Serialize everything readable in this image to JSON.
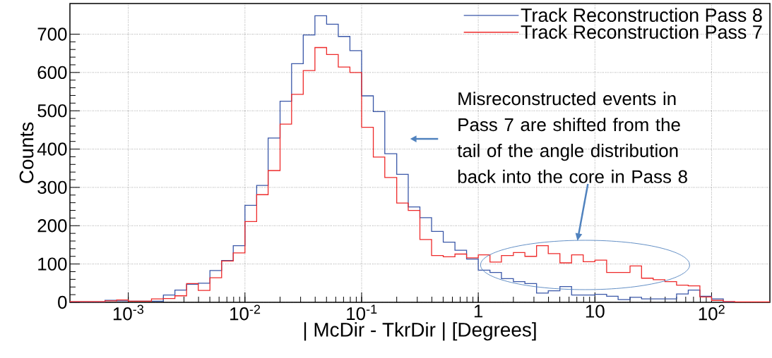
{
  "chart_data": {
    "type": "histogram",
    "xlabel": "| McDir - TkrDir | [Degrees]",
    "ylabel": "Counts",
    "log": "x",
    "bins": [
      0.000316,
      0.000398,
      0.000501,
      0.000631,
      0.000794,
      0.001,
      0.00126,
      0.00158,
      0.002,
      0.00251,
      0.00316,
      0.00398,
      0.00501,
      0.00631,
      0.00794,
      0.01,
      0.0126,
      0.0158,
      0.02,
      0.0251,
      0.0316,
      0.0398,
      0.0501,
      0.0631,
      0.0794,
      0.1,
      0.126,
      0.158,
      0.2,
      0.251,
      0.316,
      0.398,
      0.501,
      0.631,
      0.794,
      1,
      1.26,
      1.58,
      2,
      2.51,
      3.16,
      3.98,
      5.01,
      6.31,
      7.94,
      10,
      12.6,
      15.8,
      20,
      25.1,
      31.6,
      39.8,
      50.1,
      63.1,
      79.4,
      100,
      126,
      158,
      200,
      251,
      316
    ],
    "series": [
      {
        "name": "Track Reconstruction Pass 8",
        "color": "#3a57a8",
        "values": [
          0,
          0,
          0,
          5,
          4,
          3,
          3,
          3,
          19,
          32,
          47,
          50,
          83,
          109,
          148,
          253,
          305,
          429,
          525,
          623,
          698,
          748,
          726,
          694,
          657,
          539,
          498,
          388,
          334,
          249,
          221,
          185,
          157,
          136,
          113,
          84,
          78,
          62,
          54,
          49,
          24,
          30,
          41,
          19,
          19,
          21,
          16,
          7,
          13,
          9,
          9,
          9,
          22,
          32,
          16,
          9,
          1,
          0,
          0,
          0
        ]
      },
      {
        "name": "Track Reconstruction Pass 7",
        "color": "#ee2a2a",
        "values": [
          2,
          2,
          2,
          4,
          6,
          3,
          3,
          9,
          10,
          17,
          49,
          31,
          64,
          108,
          129,
          211,
          281,
          344,
          465,
          543,
          605,
          665,
          647,
          614,
          600,
          457,
          379,
          326,
          259,
          240,
          164,
          122,
          119,
          126,
          116,
          124,
          105,
          122,
          130,
          120,
          148,
          127,
          103,
          124,
          106,
          110,
          78,
          78,
          95,
          63,
          59,
          54,
          45,
          43,
          14,
          5,
          2,
          1,
          1,
          1
        ]
      }
    ],
    "xlim": [
      0.000316,
      316
    ],
    "ylim": [
      0,
      780
    ],
    "xticks": [
      {
        "value": 0.001,
        "label": "10$^{-3}$"
      },
      {
        "value": 0.01,
        "label": "10$^{-2}$"
      },
      {
        "value": 0.1,
        "label": "10$^{-1}$"
      },
      1,
      10,
      {
        "value": 100,
        "label": "10$^{2}$"
      }
    ],
    "yticks": [
      0,
      100,
      200,
      300,
      400,
      500,
      600,
      700
    ],
    "grid": true,
    "legend": "top right",
    "annotations": [
      "Misreconstructed events in Pass 7 are shifted from the tail of the angle distribution back into the core in Pass 8"
    ]
  }
}
